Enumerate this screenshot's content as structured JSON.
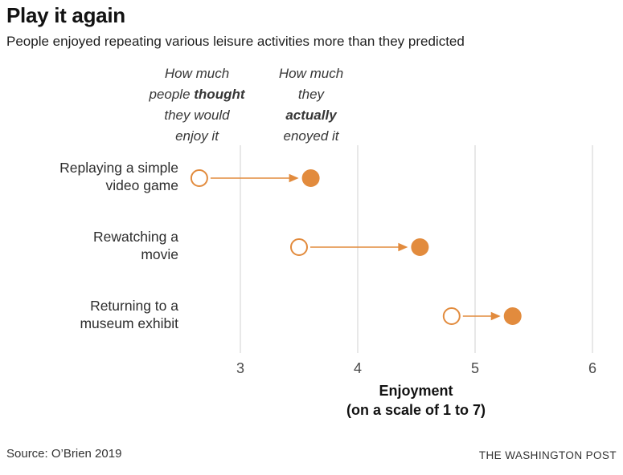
{
  "header": {
    "title": "Play it again",
    "subtitle": "People enjoyed repeating various leisure activities more than they predicted"
  },
  "annotations": {
    "left": {
      "lines": [
        [
          {
            "t": "How much"
          }
        ],
        [
          {
            "t": "people "
          },
          {
            "t": "thought",
            "b": true
          }
        ],
        [
          {
            "t": "they would"
          }
        ],
        [
          {
            "t": "enjoy it"
          }
        ]
      ]
    },
    "right": {
      "lines": [
        [
          {
            "t": "How much"
          }
        ],
        [
          {
            "t": "they"
          }
        ],
        [
          {
            "t": "actually",
            "b": true
          }
        ],
        [
          {
            "t": "enoyed it"
          }
        ]
      ]
    }
  },
  "chart_data": {
    "type": "scatter",
    "variant": "dumbbell-arrow-dot-plot",
    "categories": [
      "Replaying a simple video game",
      "Rewatching a movie",
      "Returning to a museum exhibit"
    ],
    "categories_lines": [
      [
        "Replaying a simple",
        "video game"
      ],
      [
        "Rewatching a",
        "movie"
      ],
      [
        "Returning to a",
        "museum exhibit"
      ]
    ],
    "series": [
      {
        "name": "How much people thought they would enjoy it",
        "marker": "open-circle",
        "values": [
          2.65,
          3.5,
          4.8
        ]
      },
      {
        "name": "How much they actually enoyed it",
        "marker": "filled-circle",
        "values": [
          3.6,
          4.53,
          5.32
        ]
      }
    ],
    "x_ticks": [
      3,
      4,
      5,
      6
    ],
    "xlim": [
      2.3,
      6.27
    ],
    "xlabel_line1": "Enjoyment",
    "xlabel_line2": "(on a scale of 1 to 7)",
    "grid": "vertical gridlines only",
    "legend": "annotated text above first row columns"
  },
  "footer": {
    "source": "Source: O’Brien 2019",
    "credit": "THE WASHINGTON POST"
  },
  "colors": {
    "accent_orange": "#e28b3d",
    "gridline": "#d9d9d9",
    "tick_text": "#4a4a4a",
    "text_dark": "#121212"
  }
}
